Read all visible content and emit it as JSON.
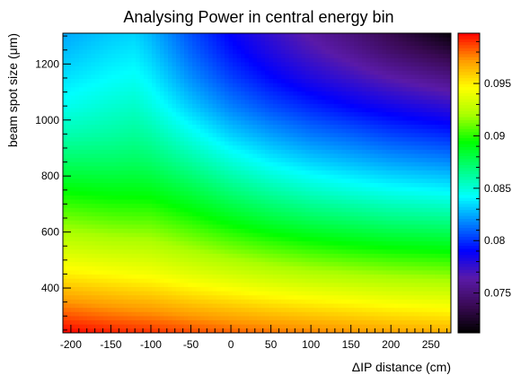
{
  "chart_data": {
    "type": "heatmap",
    "title": "Analysing Power in central energy bin",
    "xlabel": "ΔIP distance (cm)",
    "ylabel": "beam spot size (μm)",
    "xlim": [
      -210,
      275
    ],
    "ylim": [
      240,
      1310
    ],
    "x_ticks": [
      -200,
      -150,
      -100,
      -50,
      0,
      50,
      100,
      150,
      200,
      250
    ],
    "x_tick_labels": [
      "-200",
      "-150",
      "-100",
      "-50",
      "0",
      "50",
      "100",
      "150",
      "200",
      "250"
    ],
    "y_ticks": [
      400,
      600,
      800,
      1000,
      1200
    ],
    "y_tick_labels": [
      "400",
      "600",
      "800",
      "1000",
      "1200"
    ],
    "colorbar": {
      "zlim": [
        0.0712,
        0.0998
      ],
      "ticks": [
        0.075,
        0.08,
        0.085,
        0.09,
        0.095
      ],
      "tick_labels": [
        "0.075",
        "0.08",
        "0.085",
        "0.09",
        "0.095"
      ],
      "palette": [
        "#000000",
        "#3a0a55",
        "#5a1aa8",
        "#0000ff",
        "#0080ff",
        "#00ffff",
        "#00ff80",
        "#00ff00",
        "#aaff00",
        "#ffff00",
        "#ff9900",
        "#ff0000"
      ]
    },
    "x_values": [
      -210,
      -150,
      -120,
      -100,
      -50,
      0,
      50,
      100,
      150,
      200,
      275
    ],
    "y_values": [
      240,
      350,
      450,
      550,
      650,
      750,
      850,
      950,
      1050,
      1150,
      1250,
      1310
    ],
    "z_values": [
      [
        0.0998,
        0.0993,
        0.0991,
        0.099,
        0.0986,
        0.0982,
        0.0979,
        0.0976,
        0.0973,
        0.097,
        0.0967
      ],
      [
        0.0973,
        0.0968,
        0.0966,
        0.0965,
        0.096,
        0.0956,
        0.0952,
        0.0949,
        0.0946,
        0.0943,
        0.094
      ],
      [
        0.095,
        0.0946,
        0.0944,
        0.0943,
        0.0937,
        0.0932,
        0.0927,
        0.0923,
        0.092,
        0.0917,
        0.0914
      ],
      [
        0.093,
        0.0926,
        0.0925,
        0.0924,
        0.0917,
        0.091,
        0.0904,
        0.0899,
        0.0895,
        0.0892,
        0.0889
      ],
      [
        0.0911,
        0.0907,
        0.0906,
        0.0906,
        0.0898,
        0.0889,
        0.0881,
        0.0875,
        0.0871,
        0.0867,
        0.0864
      ],
      [
        0.0893,
        0.089,
        0.089,
        0.0889,
        0.088,
        0.0869,
        0.086,
        0.0853,
        0.0848,
        0.0844,
        0.084
      ],
      [
        0.0874,
        0.0874,
        0.0875,
        0.0873,
        0.0862,
        0.085,
        0.084,
        0.0833,
        0.0828,
        0.0823,
        0.0818
      ],
      [
        0.0858,
        0.0861,
        0.0863,
        0.086,
        0.0846,
        0.0832,
        0.0822,
        0.0814,
        0.0809,
        0.0803,
        0.0797
      ],
      [
        0.0845,
        0.0851,
        0.0853,
        0.0848,
        0.0831,
        0.0816,
        0.0805,
        0.0797,
        0.079,
        0.0784,
        0.0776
      ],
      [
        0.0836,
        0.0842,
        0.0844,
        0.0839,
        0.0819,
        0.0803,
        0.0791,
        0.0781,
        0.0773,
        0.0764,
        0.0753
      ],
      [
        0.0828,
        0.0835,
        0.0837,
        0.0831,
        0.081,
        0.0793,
        0.078,
        0.0768,
        0.0757,
        0.0744,
        0.0729
      ],
      [
        0.0824,
        0.0831,
        0.0833,
        0.0827,
        0.0806,
        0.0789,
        0.0775,
        0.0762,
        0.075,
        0.0736,
        0.0715
      ]
    ]
  }
}
